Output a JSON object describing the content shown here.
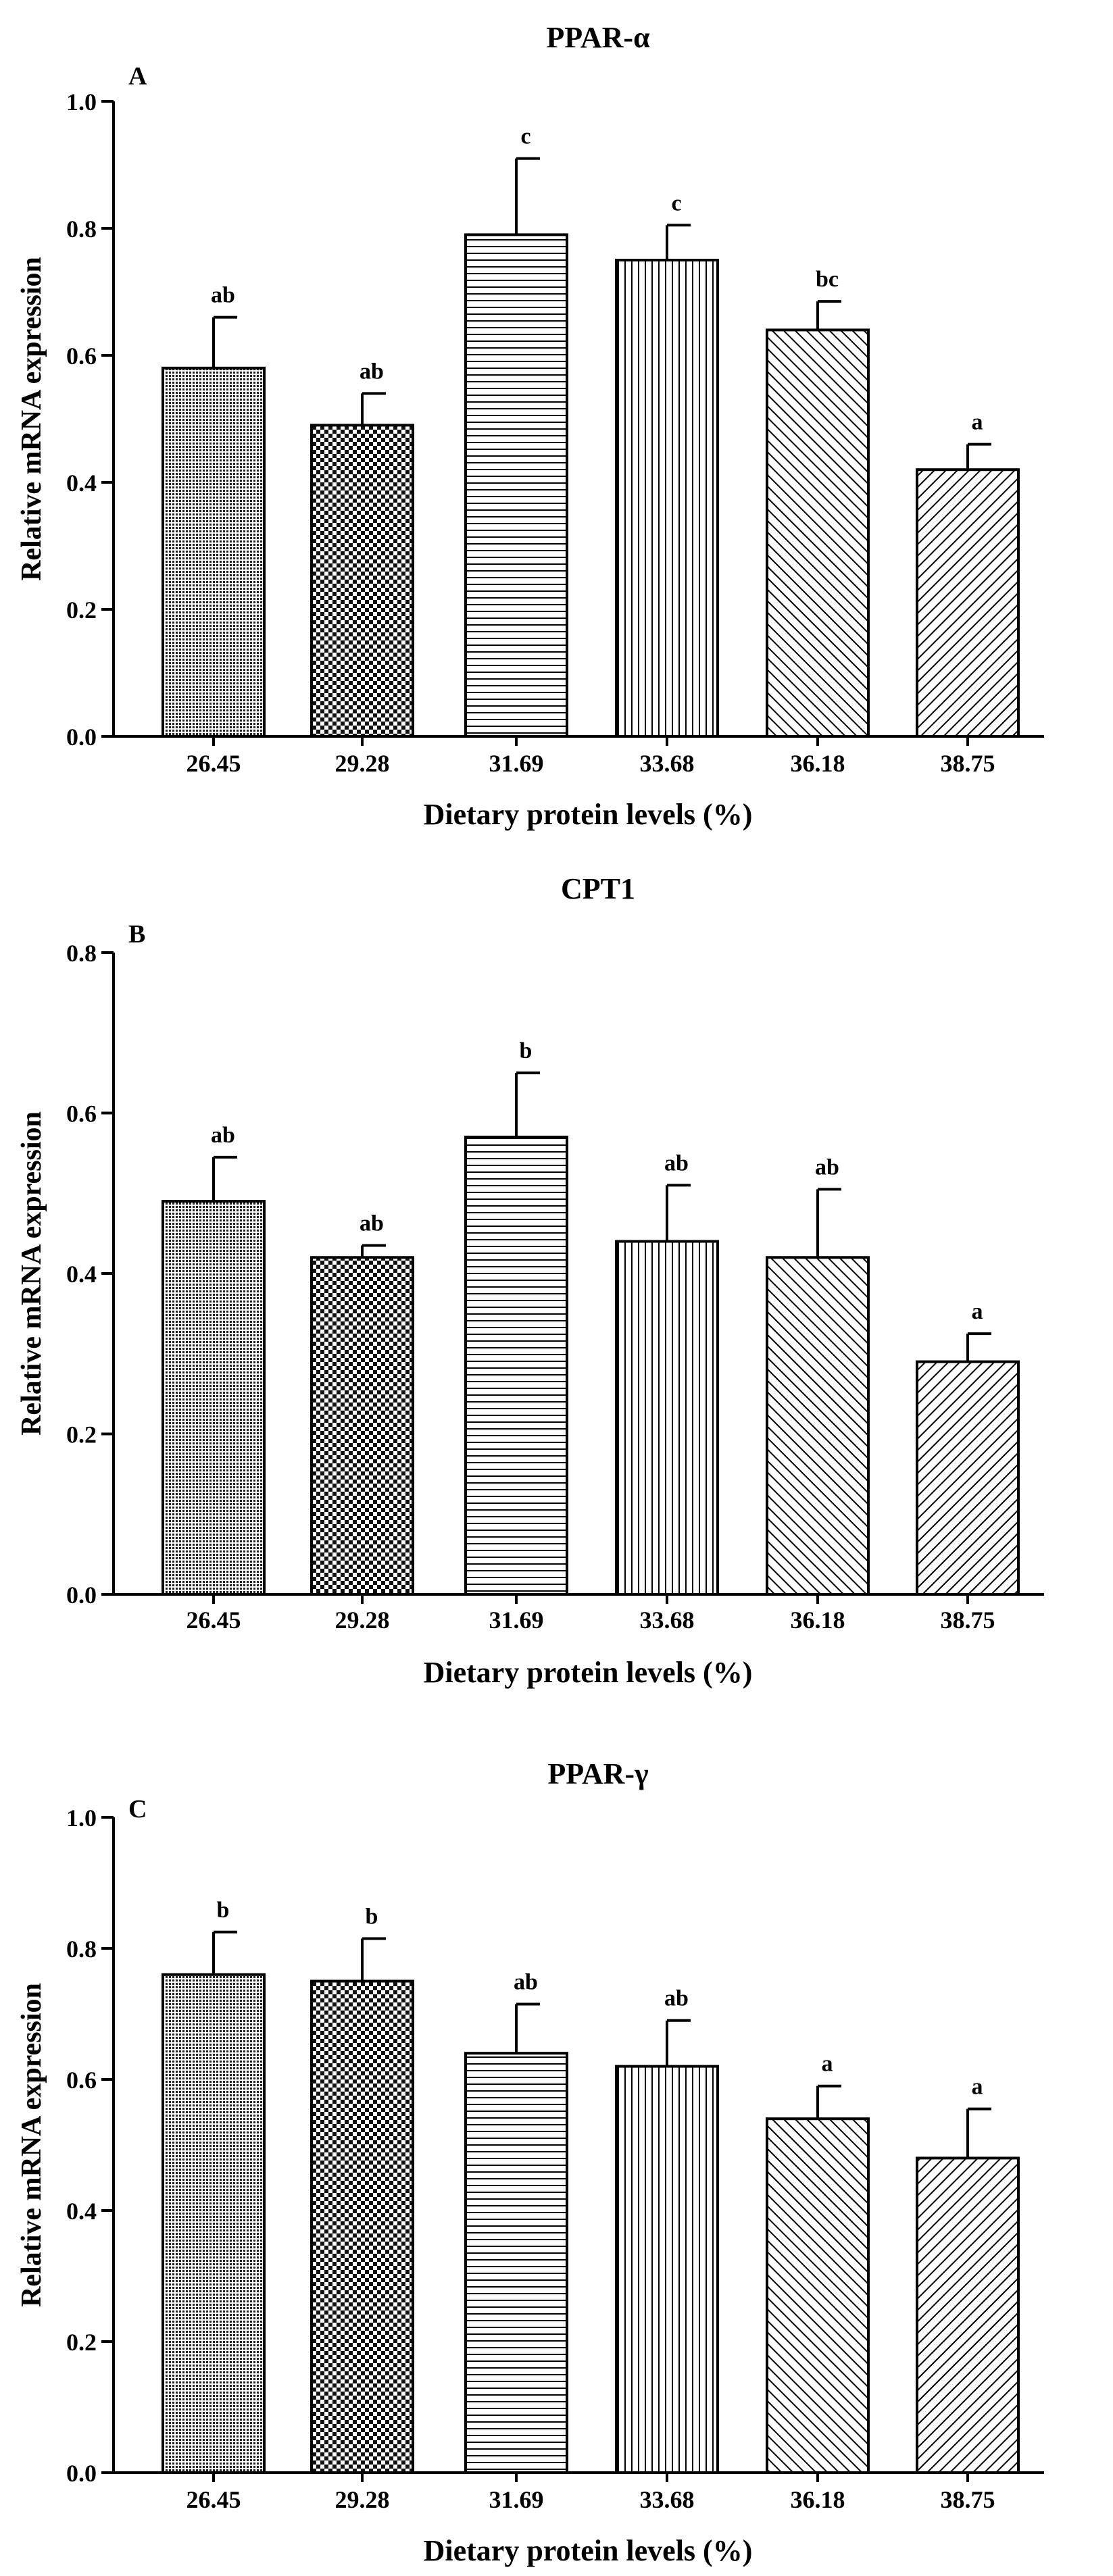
{
  "chart_data": [
    {
      "panel": "A",
      "type": "bar",
      "title": "PPAR-α",
      "xlabel": "Dietary protein levels (%)",
      "ylabel": "Relative mRNA expression",
      "ylim": [
        0,
        1.0
      ],
      "yticks": [
        "0.0",
        "0.2",
        "0.4",
        "0.6",
        "0.8",
        "1.0"
      ],
      "categories": [
        "26.45",
        "29.28",
        "31.69",
        "33.68",
        "36.18",
        "38.75"
      ],
      "values": [
        0.58,
        0.49,
        0.79,
        0.75,
        0.64,
        0.42
      ],
      "errors": [
        0.08,
        0.05,
        0.12,
        0.055,
        0.045,
        0.04
      ],
      "letters": [
        "ab",
        "ab",
        "c",
        "c",
        "bc",
        "a"
      ]
    },
    {
      "panel": "B",
      "type": "bar",
      "title": "CPT1",
      "xlabel": "Dietary protein levels (%)",
      "ylabel": "Relative mRNA expression",
      "ylim": [
        0,
        0.8
      ],
      "yticks": [
        "0.0",
        "0.2",
        "0.4",
        "0.6",
        "0.8"
      ],
      "categories": [
        "26.45",
        "29.28",
        "31.69",
        "33.68",
        "36.18",
        "38.75"
      ],
      "values": [
        0.49,
        0.42,
        0.57,
        0.44,
        0.42,
        0.29
      ],
      "errors": [
        0.055,
        0.015,
        0.08,
        0.07,
        0.085,
        0.035
      ],
      "letters": [
        "ab",
        "ab",
        "b",
        "ab",
        "ab",
        "a"
      ]
    },
    {
      "panel": "C",
      "type": "bar",
      "title": "PPAR-γ",
      "xlabel": "Dietary protein levels (%)",
      "ylabel": "Relative mRNA expression",
      "ylim": [
        0,
        1.0
      ],
      "yticks": [
        "0.0",
        "0.2",
        "0.4",
        "0.6",
        "0.8",
        "1.0"
      ],
      "categories": [
        "26.45",
        "29.28",
        "31.69",
        "33.68",
        "36.18",
        "38.75"
      ],
      "values": [
        0.76,
        0.75,
        0.64,
        0.62,
        0.54,
        0.48
      ],
      "errors": [
        0.065,
        0.065,
        0.075,
        0.07,
        0.05,
        0.075
      ],
      "letters": [
        "b",
        "b",
        "ab",
        "ab",
        "a",
        "a"
      ]
    }
  ]
}
